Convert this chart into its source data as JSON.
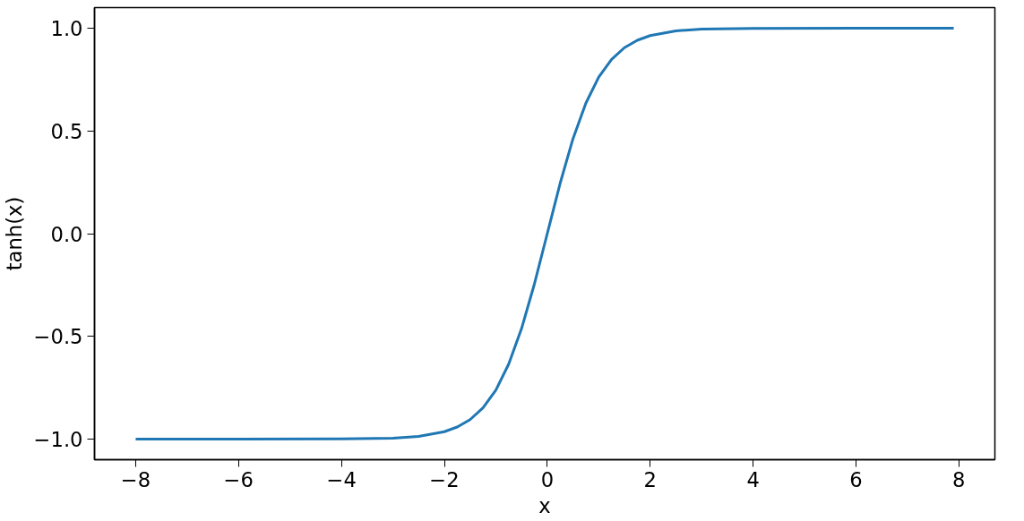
{
  "chart_data": {
    "type": "line",
    "xlabel": "x",
    "ylabel": "tanh(x)",
    "x": [
      -8,
      -6,
      -4,
      -3,
      -2.5,
      -2,
      -1.75,
      -1.5,
      -1.25,
      -1,
      -0.75,
      -0.5,
      -0.25,
      0,
      0.25,
      0.5,
      0.75,
      1,
      1.25,
      1.5,
      1.75,
      2,
      2.5,
      3,
      4,
      6,
      7.9
    ],
    "series": [
      {
        "color": "#1f77b4",
        "values": [
          -1,
          -1,
          -0.999,
          -0.995,
          -0.987,
          -0.964,
          -0.941,
          -0.905,
          -0.848,
          -0.762,
          -0.635,
          -0.462,
          -0.245,
          0,
          0.245,
          0.462,
          0.635,
          0.762,
          0.848,
          0.905,
          0.941,
          0.964,
          0.987,
          0.995,
          0.999,
          1,
          1
        ]
      }
    ],
    "xlim": [
      -8.8,
      8.7
    ],
    "ylim": [
      -1.1,
      1.1
    ],
    "xticks": [
      {
        "value": -8,
        "label": "−8"
      },
      {
        "value": -6,
        "label": "−6"
      },
      {
        "value": -4,
        "label": "−4"
      },
      {
        "value": -2,
        "label": "−2"
      },
      0,
      2,
      4,
      6,
      8
    ],
    "yticks": [
      {
        "value": -1.0,
        "label": "−1.0"
      },
      {
        "value": -0.5,
        "label": "−0.5"
      },
      {
        "value": 0.0,
        "label": "0.0"
      },
      {
        "value": 0.5,
        "label": "0.5"
      },
      {
        "value": 1.0,
        "label": "1.0"
      }
    ],
    "grid": false,
    "marker": "none",
    "line_style": "solid"
  }
}
